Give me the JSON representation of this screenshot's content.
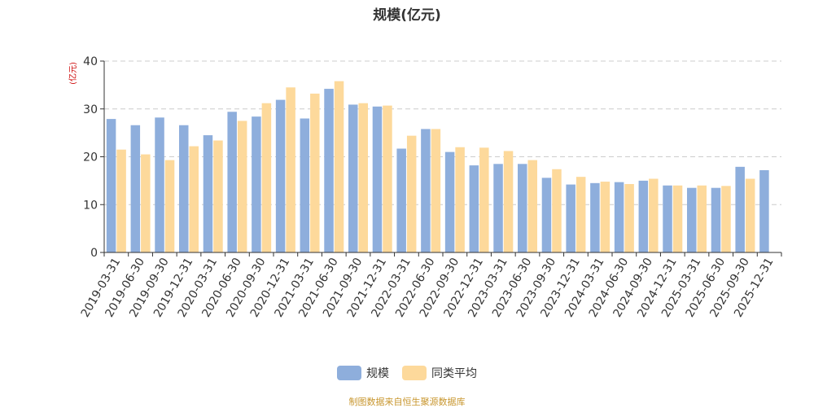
{
  "chart_data": {
    "type": "bar",
    "title": "规模(亿元)",
    "ylabel": "(亿元)",
    "xlabel": "",
    "ylim": [
      0,
      40
    ],
    "yticks": [
      0,
      10,
      20,
      30,
      40
    ],
    "grid": true,
    "legend_position": "bottom",
    "categories": [
      "2019-03-31",
      "2019-06-30",
      "2019-09-30",
      "2019-12-31",
      "2020-03-31",
      "2020-06-30",
      "2020-09-30",
      "2020-12-31",
      "2021-03-31",
      "2021-06-30",
      "2021-09-30",
      "2021-12-31",
      "2022-03-31",
      "2022-06-30",
      "2022-09-30",
      "2022-12-31",
      "2023-03-31",
      "2023-06-30",
      "2023-09-30",
      "2023-12-31",
      "2024-03-31",
      "2024-06-30",
      "2024-09-30",
      "2024-12-31",
      "2025-03-31",
      "2025-06-30",
      "2025-09-30",
      "2025-12-31"
    ],
    "series": [
      {
        "name": "规模",
        "color": "#8eaedc",
        "values": [
          27.9,
          26.6,
          28.2,
          26.6,
          24.5,
          29.4,
          28.4,
          31.9,
          28.0,
          34.2,
          30.9,
          30.5,
          21.7,
          25.8,
          21.0,
          18.2,
          18.5,
          18.5,
          15.6,
          14.2,
          14.5,
          14.7,
          15.0,
          14.0,
          13.5,
          13.5,
          17.9,
          17.2
        ]
      },
      {
        "name": "同类平均",
        "color": "#fdd99b",
        "values": [
          21.5,
          20.5,
          19.3,
          22.2,
          23.4,
          27.5,
          31.2,
          34.5,
          33.2,
          35.8,
          31.2,
          30.7,
          24.4,
          25.8,
          22.0,
          21.9,
          21.2,
          19.3,
          17.4,
          15.8,
          14.8,
          14.3,
          15.4,
          14.0,
          14.0,
          13.9,
          15.4,
          null
        ]
      }
    ]
  },
  "footer": {
    "source": "制图数据来自恒生聚源数据库"
  }
}
